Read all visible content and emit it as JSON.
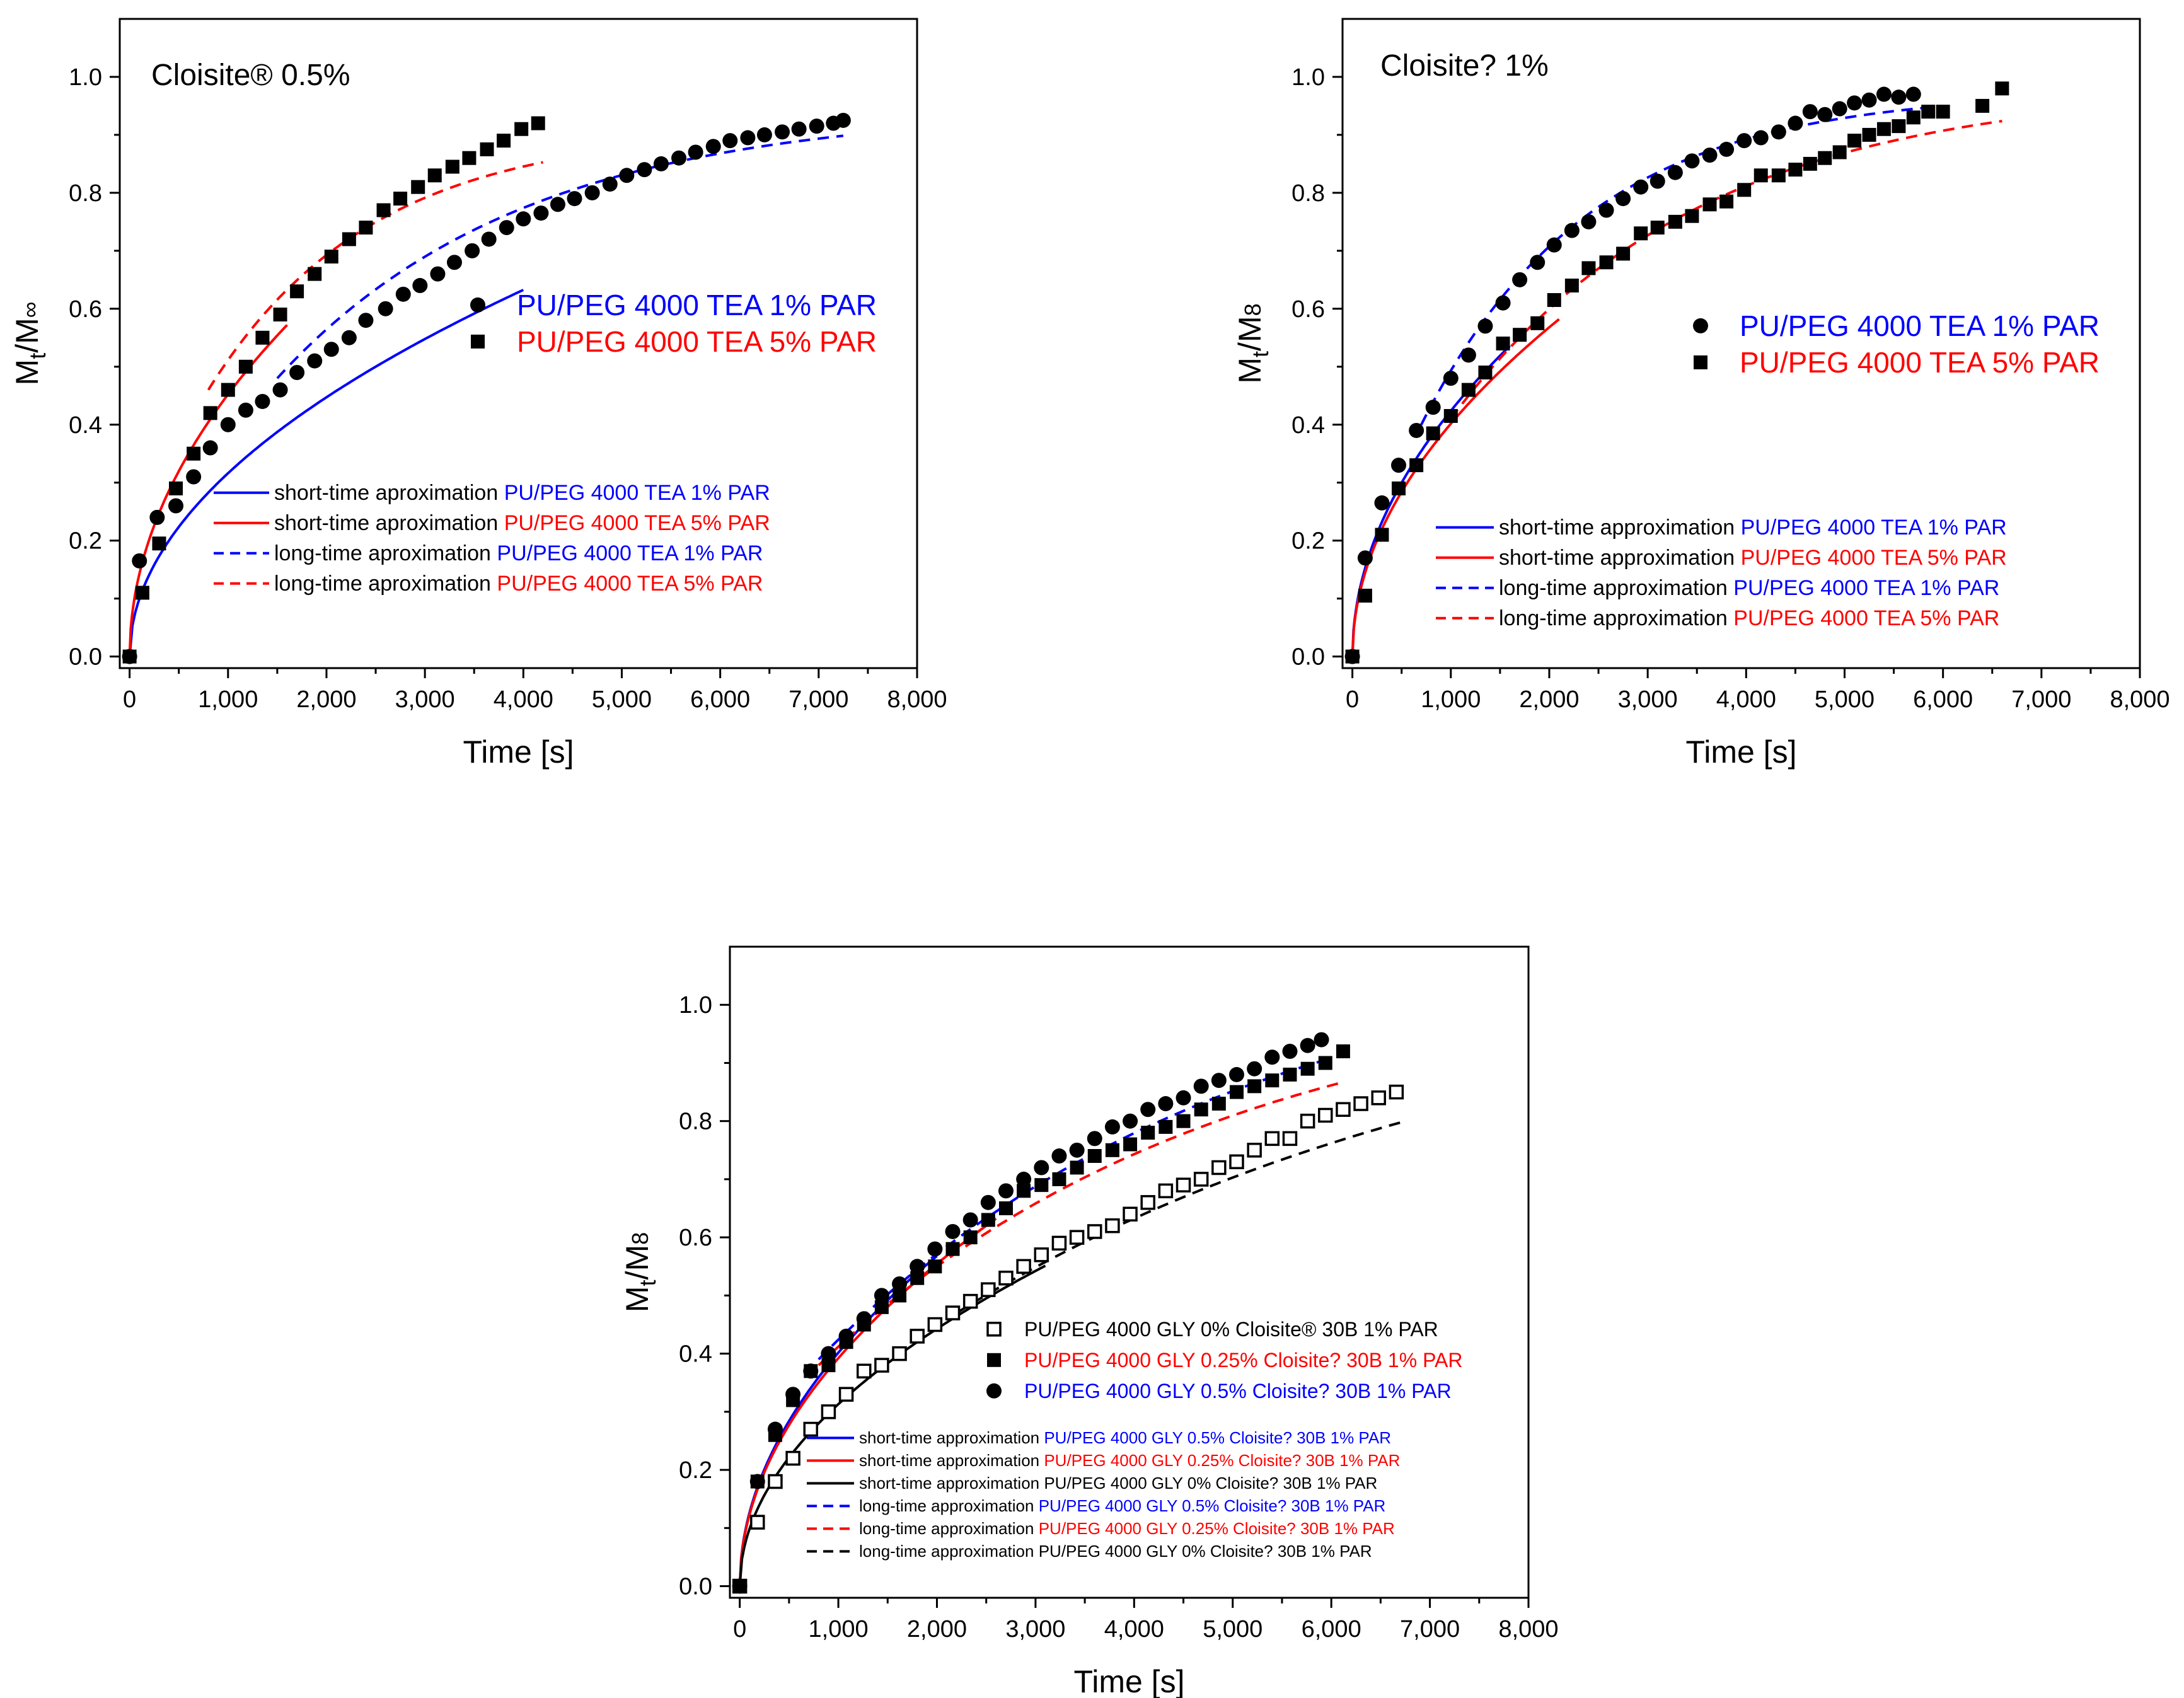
{
  "chart_data": [
    {
      "type": "scatter",
      "title": "Cloisite® 0.5%",
      "xlabel": "Time [s]",
      "ylabel_main": "M",
      "ylabel_sub1": "t",
      "ylabel_mid": "/M",
      "ylabel_sub2": "∞",
      "xlim": [
        -100,
        8000
      ],
      "ylim": [
        -0.02,
        1.1
      ],
      "xticks": [
        0,
        1000,
        2000,
        3000,
        4000,
        5000,
        6000,
        7000,
        8000
      ],
      "xtick_labels": [
        "0",
        "1,000",
        "2,000",
        "3,000",
        "4,000",
        "5,000",
        "6,000",
        "7,000",
        "8,000"
      ],
      "yticks": [
        0,
        0.2,
        0.4,
        0.6,
        0.8,
        1.0
      ],
      "ytick_labels": [
        "0.0",
        "0.2",
        "0.4",
        "0.6",
        "0.8",
        "1.0"
      ],
      "marker_legend": [
        {
          "marker": "circle",
          "label": "PU/PEG 4000 TEA 1% PAR",
          "color": "#0000ff"
        },
        {
          "marker": "square",
          "label": "PU/PEG 4000 TEA 5% PAR",
          "color": "#ff0000"
        }
      ],
      "line_legend": [
        {
          "label": "short-time aproximation ",
          "series": "PU/PEG 4000 TEA 1% PAR",
          "color": "#0000ff",
          "dash": false
        },
        {
          "label": "short-time aproximation ",
          "series": "PU/PEG 4000 TEA 5% PAR",
          "color": "#ff0000",
          "dash": false
        },
        {
          "label": "long-time aproximation ",
          "series": "PU/PEG 4000 TEA 1% PAR",
          "color": "#0000ff",
          "dash": true
        },
        {
          "label": "long-time aproximation ",
          "series": "PU/PEG 4000 TEA 5% PAR",
          "color": "#ff0000",
          "dash": true
        }
      ],
      "series": [
        {
          "name": "PU/PEG 4000 TEA 1% PAR",
          "marker": "circle",
          "fill": "#000000",
          "x": [
            0,
            100,
            280,
            470,
            650,
            820,
            1000,
            1180,
            1350,
            1530,
            1700,
            1880,
            2050,
            2230,
            2400,
            2600,
            2780,
            2950,
            3130,
            3300,
            3480,
            3650,
            3830,
            4000,
            4180,
            4350,
            4520,
            4700,
            4880,
            5050,
            5230,
            5400,
            5580,
            5750,
            5930,
            6100,
            6280,
            6450,
            6630,
            6800,
            6980,
            7150,
            7250
          ],
          "y": [
            0.0,
            0.165,
            0.24,
            0.26,
            0.31,
            0.36,
            0.4,
            0.425,
            0.44,
            0.46,
            0.49,
            0.51,
            0.53,
            0.55,
            0.58,
            0.6,
            0.625,
            0.64,
            0.66,
            0.68,
            0.7,
            0.72,
            0.74,
            0.755,
            0.765,
            0.78,
            0.79,
            0.8,
            0.815,
            0.83,
            0.84,
            0.85,
            0.86,
            0.87,
            0.88,
            0.89,
            0.895,
            0.9,
            0.905,
            0.91,
            0.915,
            0.92,
            0.925
          ]
        },
        {
          "name": "PU/PEG 4000 TEA 5% PAR",
          "marker": "square",
          "fill": "#000000",
          "x": [
            0,
            130,
            300,
            470,
            650,
            820,
            1000,
            1180,
            1350,
            1530,
            1700,
            1880,
            2050,
            2230,
            2400,
            2580,
            2750,
            2930,
            3100,
            3280,
            3450,
            3630,
            3800,
            3980,
            4150
          ],
          "y": [
            0.0,
            0.11,
            0.195,
            0.29,
            0.35,
            0.42,
            0.46,
            0.5,
            0.55,
            0.59,
            0.63,
            0.66,
            0.69,
            0.72,
            0.74,
            0.77,
            0.79,
            0.81,
            0.83,
            0.845,
            0.86,
            0.875,
            0.89,
            0.91,
            0.92
          ]
        }
      ],
      "fits": [
        {
          "name": "short PU/PEG 4000 TEA 1% PAR",
          "model": "sqrt",
          "k": 0.01,
          "xmax": 4000,
          "color": "#0000ff",
          "dash": false
        },
        {
          "name": "short PU/PEG 4000 TEA 5% PAR",
          "model": "sqrt",
          "k": 0.0143,
          "xmax": 1600,
          "color": "#ff0000",
          "dash": false
        },
        {
          "name": "long PU/PEG 4000 TEA 1% PAR",
          "model": "exp",
          "x0": 1500,
          "y0": 0.48,
          "ymax": 0.945,
          "tau": 2500,
          "xmax": 7250,
          "color": "#0000ff",
          "dash": true
        },
        {
          "name": "long PU/PEG 4000 TEA 5% PAR",
          "model": "exp",
          "x0": 800,
          "y0": 0.46,
          "ymax": 0.91,
          "tau": 1650,
          "xmax": 4200,
          "color": "#ff0000",
          "dash": true
        }
      ]
    },
    {
      "type": "scatter",
      "title": "Cloisite?  1%",
      "xlabel": "Time [s]",
      "ylabel_main": "M",
      "ylabel_sub1": "t",
      "ylabel_mid": "/M",
      "ylabel_sub2": "8",
      "xlim": [
        -100,
        8000
      ],
      "ylim": [
        -0.02,
        1.1
      ],
      "xticks": [
        0,
        1000,
        2000,
        3000,
        4000,
        5000,
        6000,
        7000,
        8000
      ],
      "xtick_labels": [
        "0",
        "1,000",
        "2,000",
        "3,000",
        "4,000",
        "5,000",
        "6,000",
        "7,000",
        "8,000"
      ],
      "yticks": [
        0,
        0.2,
        0.4,
        0.6,
        0.8,
        1.0
      ],
      "ytick_labels": [
        "0.0",
        "0.2",
        "0.4",
        "0.6",
        "0.8",
        "1.0"
      ],
      "marker_legend": [
        {
          "marker": "circle",
          "label": "PU/PEG 4000 TEA 1% PAR",
          "color": "#0000ff"
        },
        {
          "marker": "square",
          "label": "PU/PEG 4000 TEA 5% PAR",
          "color": "#ff0000"
        }
      ],
      "line_legend": [
        {
          "label": "short-time approximation ",
          "series": "PU/PEG 4000 TEA 1% PAR",
          "color": "#0000ff",
          "dash": false
        },
        {
          "label": "short-time approximation ",
          "series": "PU/PEG 4000 TEA 5% PAR",
          "color": "#ff0000",
          "dash": false
        },
        {
          "label": "long-time approximation ",
          "series": "PU/PEG 4000 TEA 1% PAR",
          "color": "#0000ff",
          "dash": true
        },
        {
          "label": "long-time approximation ",
          "series": "PU/PEG 4000 TEA 5% PAR",
          "color": "#ff0000",
          "dash": true
        }
      ],
      "series": [
        {
          "name": "PU/PEG 4000 TEA 1% PAR",
          "marker": "circle",
          "fill": "#000000",
          "x": [
            0,
            130,
            300,
            470,
            650,
            820,
            1000,
            1180,
            1350,
            1530,
            1700,
            1880,
            2050,
            2230,
            2400,
            2580,
            2750,
            2930,
            3100,
            3280,
            3450,
            3630,
            3800,
            3980,
            4150,
            4330,
            4500,
            4650,
            4800,
            4950,
            5100,
            5250,
            5400,
            5550,
            5700
          ],
          "y": [
            0.0,
            0.17,
            0.265,
            0.33,
            0.39,
            0.43,
            0.48,
            0.52,
            0.57,
            0.61,
            0.65,
            0.68,
            0.71,
            0.735,
            0.75,
            0.77,
            0.79,
            0.81,
            0.82,
            0.835,
            0.855,
            0.865,
            0.875,
            0.89,
            0.895,
            0.905,
            0.92,
            0.94,
            0.935,
            0.945,
            0.955,
            0.96,
            0.97,
            0.965,
            0.97
          ]
        },
        {
          "name": "PU/PEG 4000 TEA 5% PAR",
          "marker": "square",
          "fill": "#000000",
          "x": [
            0,
            130,
            300,
            470,
            650,
            820,
            1000,
            1180,
            1350,
            1530,
            1700,
            1880,
            2050,
            2230,
            2400,
            2580,
            2750,
            2930,
            3100,
            3280,
            3450,
            3630,
            3800,
            3980,
            4150,
            4330,
            4500,
            4650,
            4800,
            4950,
            5100,
            5250,
            5400,
            5550,
            5700,
            5850,
            6000,
            6400,
            6600
          ],
          "y": [
            0.0,
            0.105,
            0.21,
            0.29,
            0.33,
            0.385,
            0.415,
            0.46,
            0.49,
            0.54,
            0.555,
            0.575,
            0.615,
            0.64,
            0.67,
            0.68,
            0.695,
            0.73,
            0.74,
            0.75,
            0.76,
            0.78,
            0.785,
            0.805,
            0.83,
            0.83,
            0.84,
            0.85,
            0.86,
            0.87,
            0.89,
            0.9,
            0.91,
            0.915,
            0.93,
            0.94,
            0.94,
            0.95,
            0.98
          ]
        }
      ],
      "fits": [
        {
          "name": "short PU/PEG 4000 TEA 1% PAR",
          "model": "sqrt",
          "k": 0.0134,
          "xmax": 1600,
          "color": "#0000ff",
          "dash": false
        },
        {
          "name": "short PU/PEG 4000 TEA 5% PAR",
          "model": "sqrt",
          "k": 0.0127,
          "xmax": 2100,
          "color": "#ff0000",
          "dash": false
        },
        {
          "name": "long PU/PEG 4000 TEA 1% PAR",
          "model": "exp",
          "x0": 700,
          "y0": 0.4,
          "ymax": 0.975,
          "tau": 1700,
          "xmax": 5900,
          "color": "#0000ff",
          "dash": true
        },
        {
          "name": "long PU/PEG 4000 TEA 5% PAR",
          "model": "exp",
          "x0": 1000,
          "y0": 0.41,
          "ymax": 0.985,
          "tau": 2500,
          "xmax": 6600,
          "color": "#ff0000",
          "dash": true
        }
      ]
    },
    {
      "type": "scatter",
      "title": "",
      "xlabel": "Time [s]",
      "ylabel_main": "M",
      "ylabel_sub1": "t",
      "ylabel_mid": "/M",
      "ylabel_sub2": "8",
      "xlim": [
        -100,
        8000
      ],
      "ylim": [
        -0.02,
        1.1
      ],
      "xticks": [
        0,
        1000,
        2000,
        3000,
        4000,
        5000,
        6000,
        7000,
        8000
      ],
      "xtick_labels": [
        "0",
        "1,000",
        "2,000",
        "3,000",
        "4,000",
        "5,000",
        "6,000",
        "7,000",
        "8,000"
      ],
      "yticks": [
        0,
        0.2,
        0.4,
        0.6,
        0.8,
        1.0
      ],
      "ytick_labels": [
        "0.0",
        "0.2",
        "0.4",
        "0.6",
        "0.8",
        "1.0"
      ],
      "marker_legend": [
        {
          "marker": "open-square",
          "label": "PU/PEG 4000 GLY 0% Cloisite® 30B 1% PAR",
          "color": "#000000"
        },
        {
          "marker": "square",
          "label": "PU/PEG 4000 GLY 0.25% Cloisite?  30B 1% PAR",
          "color": "#ff0000"
        },
        {
          "marker": "circle",
          "label": "PU/PEG 4000 GLY 0.5% Cloisite?  30B 1% PAR",
          "color": "#0000ff"
        }
      ],
      "line_legend": [
        {
          "label": "short-time approximation ",
          "series": "PU/PEG 4000 GLY 0.5% Cloisite?  30B 1% PAR",
          "color": "#0000ff",
          "dash": false
        },
        {
          "label": "short-time approximation ",
          "series": "PU/PEG 4000 GLY 0.25% Cloisite?  30B 1% PAR",
          "color": "#ff0000",
          "dash": false
        },
        {
          "label": "short-time approximation ",
          "series": "PU/PEG 4000 GLY 0% Cloisite?  30B 1% PAR",
          "color": "#000000",
          "dash": false
        },
        {
          "label": "long-time approximation ",
          "series": "PU/PEG 4000 GLY 0.5% Cloisite?  30B 1% PAR",
          "color": "#0000ff",
          "dash": true
        },
        {
          "label": "long-time approximation ",
          "series": "PU/PEG 4000 GLY 0.25% Cloisite?  30B 1% PAR",
          "color": "#ff0000",
          "dash": true
        },
        {
          "label": "long-time approximation ",
          "series": "PU/PEG 4000 GLY 0% Cloisite?  30B 1% PAR",
          "color": "#000000",
          "dash": true
        }
      ],
      "series": [
        {
          "name": "PU/PEG 4000 GLY 0% Cloisite® 30B 1% PAR",
          "marker": "open-square",
          "fill": "none",
          "x": [
            0,
            180,
            360,
            540,
            720,
            900,
            1080,
            1260,
            1440,
            1620,
            1800,
            1980,
            2160,
            2340,
            2520,
            2700,
            2880,
            3060,
            3240,
            3420,
            3600,
            3780,
            3960,
            4140,
            4320,
            4500,
            4680,
            4860,
            5040,
            5220,
            5400,
            5580,
            5760,
            5940,
            6120,
            6300,
            6480,
            6660
          ],
          "y": [
            0.0,
            0.11,
            0.18,
            0.22,
            0.27,
            0.3,
            0.33,
            0.37,
            0.38,
            0.4,
            0.43,
            0.45,
            0.47,
            0.49,
            0.51,
            0.53,
            0.55,
            0.57,
            0.59,
            0.6,
            0.61,
            0.62,
            0.64,
            0.66,
            0.68,
            0.69,
            0.7,
            0.72,
            0.73,
            0.75,
            0.77,
            0.77,
            0.8,
            0.81,
            0.82,
            0.83,
            0.84,
            0.85
          ]
        },
        {
          "name": "PU/PEG 4000 GLY 0.25% Cloisite?  30B 1% PAR",
          "marker": "square",
          "fill": "#000000",
          "x": [
            0,
            180,
            360,
            540,
            720,
            900,
            1080,
            1260,
            1440,
            1620,
            1800,
            1980,
            2160,
            2340,
            2520,
            2700,
            2880,
            3060,
            3240,
            3420,
            3600,
            3780,
            3960,
            4140,
            4320,
            4500,
            4680,
            4860,
            5040,
            5220,
            5400,
            5580,
            5760,
            5940,
            6120
          ],
          "y": [
            0.0,
            0.18,
            0.26,
            0.32,
            0.37,
            0.38,
            0.42,
            0.45,
            0.48,
            0.5,
            0.53,
            0.55,
            0.58,
            0.6,
            0.63,
            0.65,
            0.68,
            0.69,
            0.7,
            0.72,
            0.74,
            0.75,
            0.76,
            0.78,
            0.79,
            0.8,
            0.82,
            0.83,
            0.85,
            0.86,
            0.87,
            0.88,
            0.89,
            0.9,
            0.92
          ]
        },
        {
          "name": "PU/PEG 4000 GLY 0.5% Cloisite?  30B 1% PAR",
          "marker": "circle",
          "fill": "#000000",
          "x": [
            0,
            180,
            360,
            540,
            720,
            900,
            1080,
            1260,
            1440,
            1620,
            1800,
            1980,
            2160,
            2340,
            2520,
            2700,
            2880,
            3060,
            3240,
            3420,
            3600,
            3780,
            3960,
            4140,
            4320,
            4500,
            4680,
            4860,
            5040,
            5220,
            5400,
            5580,
            5760,
            5900
          ],
          "y": [
            0.0,
            0.18,
            0.27,
            0.33,
            0.37,
            0.4,
            0.43,
            0.46,
            0.5,
            0.52,
            0.55,
            0.58,
            0.61,
            0.63,
            0.66,
            0.68,
            0.7,
            0.72,
            0.74,
            0.75,
            0.77,
            0.79,
            0.8,
            0.82,
            0.83,
            0.84,
            0.86,
            0.87,
            0.88,
            0.89,
            0.91,
            0.92,
            0.93,
            0.94
          ]
        }
      ],
      "fits": [
        {
          "name": "short GLY 0.5%",
          "model": "sqrt",
          "k": 0.0127,
          "xmax": 2000,
          "color": "#0000ff",
          "dash": false
        },
        {
          "name": "short GLY 0.25%",
          "model": "sqrt",
          "k": 0.0124,
          "xmax": 2600,
          "color": "#ff0000",
          "dash": false
        },
        {
          "name": "short GLY 0%",
          "model": "sqrt",
          "k": 0.0099,
          "xmax": 3100,
          "color": "#000000",
          "dash": false
        },
        {
          "name": "long GLY 0.5%",
          "model": "exp",
          "x0": 800,
          "y0": 0.39,
          "ymax": 1.12,
          "tau": 4200,
          "xmax": 6000,
          "color": "#0000ff",
          "dash": true
        },
        {
          "name": "long GLY 0.25%",
          "model": "exp",
          "x0": 800,
          "y0": 0.38,
          "ymax": 1.05,
          "tau": 4100,
          "xmax": 6100,
          "color": "#ff0000",
          "dash": true
        },
        {
          "name": "long GLY 0%",
          "model": "exp",
          "x0": 2200,
          "y0": 0.47,
          "ymax": 1.07,
          "tau": 5700,
          "xmax": 6700,
          "color": "#000000",
          "dash": true
        }
      ]
    }
  ]
}
